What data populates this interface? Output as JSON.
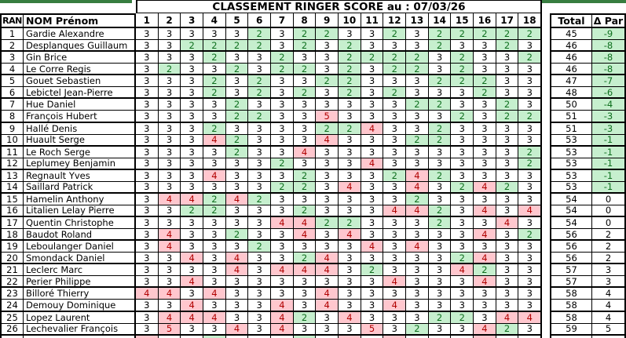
{
  "title": "CLASSEMENT RINGER SCORE au :  07/03/26",
  "header": {
    "rank": "RAN",
    "name": "NOM Prénom",
    "holes": [
      "1",
      "2",
      "3",
      "4",
      "5",
      "6",
      "7",
      "8",
      "9",
      "10",
      "11",
      "12",
      "13",
      "14",
      "15",
      "16",
      "17",
      "18"
    ],
    "total": "Total",
    "delta": "Δ Par"
  },
  "colors": {
    "top_bar": "#377D40",
    "good_bg": "#C6EFCE",
    "good_text": "#0E6F1E",
    "bad_bg": "#FFC7CE",
    "bad_text": "#B00000",
    "border": "#000000"
  },
  "rows": [
    {
      "rank": "1",
      "name": "Gardie Alexandre",
      "scores": [
        3,
        3,
        3,
        3,
        3,
        2,
        3,
        2,
        2,
        3,
        3,
        2,
        3,
        2,
        2,
        2,
        2,
        2
      ],
      "total": "45",
      "delta": "-9"
    },
    {
      "rank": "2",
      "name": "Desplanques Guillaum",
      "scores": [
        3,
        3,
        2,
        2,
        2,
        2,
        3,
        2,
        3,
        2,
        3,
        3,
        3,
        2,
        3,
        3,
        2,
        3
      ],
      "total": "46",
      "delta": "-8"
    },
    {
      "rank": "3",
      "name": "Gin Brice",
      "scores": [
        3,
        3,
        3,
        2,
        3,
        3,
        2,
        3,
        3,
        2,
        2,
        2,
        2,
        3,
        2,
        3,
        3,
        2
      ],
      "total": "46",
      "delta": "-8"
    },
    {
      "rank": "4",
      "name": "Le Corre Regis",
      "scores": [
        3,
        2,
        3,
        3,
        2,
        3,
        2,
        2,
        3,
        2,
        3,
        2,
        2,
        3,
        2,
        3,
        3,
        3
      ],
      "total": "46",
      "delta": "-8"
    },
    {
      "rank": "5",
      "name": "Gouet Sebastien",
      "scores": [
        3,
        3,
        3,
        2,
        3,
        2,
        3,
        3,
        2,
        2,
        3,
        3,
        3,
        2,
        2,
        2,
        3,
        3
      ],
      "total": "47",
      "delta": "-7"
    },
    {
      "rank": "6",
      "name": "Lebictel Jean-Pierre",
      "scores": [
        3,
        3,
        3,
        2,
        3,
        2,
        3,
        2,
        3,
        2,
        3,
        2,
        3,
        3,
        3,
        2,
        3,
        3
      ],
      "total": "48",
      "delta": "-6"
    },
    {
      "rank": "7",
      "name": "Hue Daniel",
      "scores": [
        3,
        3,
        3,
        3,
        2,
        3,
        3,
        3,
        3,
        3,
        3,
        3,
        2,
        2,
        3,
        3,
        2,
        3
      ],
      "total": "50",
      "delta": "-4"
    },
    {
      "rank": "8",
      "name": "François Hubert",
      "scores": [
        3,
        3,
        3,
        3,
        2,
        2,
        3,
        3,
        5,
        3,
        3,
        3,
        3,
        3,
        2,
        3,
        2,
        2
      ],
      "total": "51",
      "delta": "-3"
    },
    {
      "rank": "9",
      "name": "Hallé Denis",
      "scores": [
        3,
        3,
        3,
        2,
        3,
        3,
        3,
        3,
        2,
        2,
        4,
        3,
        3,
        2,
        3,
        3,
        3,
        3
      ],
      "total": "51",
      "delta": "-3"
    },
    {
      "rank": "10",
      "name": "Huault Serge",
      "scores": [
        3,
        3,
        3,
        4,
        2,
        3,
        3,
        3,
        4,
        3,
        3,
        3,
        2,
        2,
        3,
        3,
        3,
        3
      ],
      "total": "53",
      "delta": "-1"
    },
    {
      "rank": "11",
      "name": "Le Roch Serge",
      "scores": [
        3,
        3,
        3,
        3,
        2,
        3,
        3,
        4,
        3,
        3,
        3,
        3,
        3,
        3,
        3,
        3,
        3,
        2
      ],
      "total": "53",
      "delta": "-1"
    },
    {
      "rank": "12",
      "name": "Leplumey Benjamin",
      "scores": [
        3,
        3,
        3,
        3,
        3,
        3,
        2,
        3,
        3,
        3,
        4,
        3,
        3,
        3,
        3,
        3,
        3,
        2
      ],
      "total": "53",
      "delta": "-1"
    },
    {
      "rank": "13",
      "name": "Regnault Yves",
      "scores": [
        3,
        3,
        3,
        4,
        3,
        3,
        3,
        2,
        3,
        3,
        3,
        2,
        4,
        2,
        3,
        3,
        3,
        3
      ],
      "total": "53",
      "delta": "-1"
    },
    {
      "rank": "14",
      "name": "Saillard Patrick",
      "scores": [
        3,
        3,
        3,
        3,
        3,
        3,
        2,
        2,
        3,
        4,
        3,
        3,
        4,
        3,
        2,
        4,
        2,
        3
      ],
      "total": "53",
      "delta": "-1"
    },
    {
      "rank": "15",
      "name": "Hamelin Anthony",
      "scores": [
        3,
        4,
        4,
        2,
        4,
        2,
        3,
        3,
        3,
        3,
        3,
        3,
        2,
        3,
        3,
        3,
        3,
        3
      ],
      "total": "54",
      "delta": "0"
    },
    {
      "rank": "16",
      "name": "Litalien Lelay Pierre",
      "scores": [
        3,
        3,
        2,
        2,
        3,
        3,
        3,
        2,
        3,
        3,
        3,
        4,
        4,
        2,
        3,
        4,
        3,
        4
      ],
      "total": "54",
      "delta": "0"
    },
    {
      "rank": "17",
      "name": "Quentin Christophe",
      "scores": [
        3,
        3,
        3,
        3,
        3,
        3,
        4,
        4,
        2,
        2,
        3,
        3,
        3,
        2,
        3,
        3,
        4,
        3
      ],
      "total": "54",
      "delta": "0"
    },
    {
      "rank": "18",
      "name": "Baudot Roland",
      "scores": [
        3,
        4,
        3,
        3,
        2,
        3,
        3,
        4,
        3,
        4,
        3,
        3,
        3,
        3,
        3,
        4,
        3,
        2
      ],
      "total": "56",
      "delta": "2"
    },
    {
      "rank": "19",
      "name": "Leboulanger Daniel",
      "scores": [
        3,
        4,
        3,
        3,
        3,
        2,
        3,
        3,
        3,
        3,
        4,
        3,
        4,
        3,
        3,
        3,
        3,
        3
      ],
      "total": "56",
      "delta": "2"
    },
    {
      "rank": "20",
      "name": "Smondack Daniel",
      "scores": [
        3,
        3,
        4,
        3,
        4,
        3,
        3,
        2,
        4,
        3,
        3,
        3,
        3,
        3,
        2,
        4,
        3,
        3
      ],
      "total": "56",
      "delta": "2"
    },
    {
      "rank": "21",
      "name": "Leclerc Marc",
      "scores": [
        3,
        3,
        3,
        3,
        4,
        3,
        4,
        4,
        4,
        3,
        2,
        3,
        3,
        3,
        4,
        2,
        3,
        3
      ],
      "total": "57",
      "delta": "3"
    },
    {
      "rank": "22",
      "name": "Perier Philippe",
      "scores": [
        3,
        3,
        4,
        3,
        3,
        3,
        3,
        3,
        3,
        3,
        3,
        4,
        3,
        3,
        3,
        4,
        3,
        3
      ],
      "total": "57",
      "delta": "3"
    },
    {
      "rank": "23",
      "name": "Billoré Thierry",
      "scores": [
        4,
        4,
        3,
        4,
        3,
        3,
        3,
        3,
        4,
        3,
        3,
        3,
        3,
        3,
        3,
        3,
        3,
        3
      ],
      "total": "58",
      "delta": "4"
    },
    {
      "rank": "24",
      "name": "Demouy Dominique",
      "scores": [
        3,
        3,
        4,
        3,
        3,
        3,
        4,
        3,
        4,
        3,
        3,
        4,
        3,
        3,
        3,
        3,
        3,
        3
      ],
      "total": "58",
      "delta": "4"
    },
    {
      "rank": "25",
      "name": "Lopez Laurent",
      "scores": [
        3,
        4,
        4,
        4,
        3,
        3,
        4,
        2,
        3,
        4,
        3,
        3,
        3,
        2,
        2,
        3,
        4,
        4
      ],
      "total": "58",
      "delta": "4"
    },
    {
      "rank": "26",
      "name": "Lechevalier François",
      "scores": [
        3,
        5,
        3,
        3,
        4,
        3,
        4,
        3,
        3,
        3,
        5,
        3,
        2,
        3,
        3,
        4,
        2,
        3
      ],
      "total": "59",
      "delta": "5"
    }
  ],
  "partial_row_colors": [
    "r",
    "w",
    "w",
    "g",
    "w",
    "w",
    "w",
    "g",
    "w",
    "r",
    "w",
    "r",
    "w",
    "w",
    "w",
    "r",
    "w",
    "w"
  ]
}
